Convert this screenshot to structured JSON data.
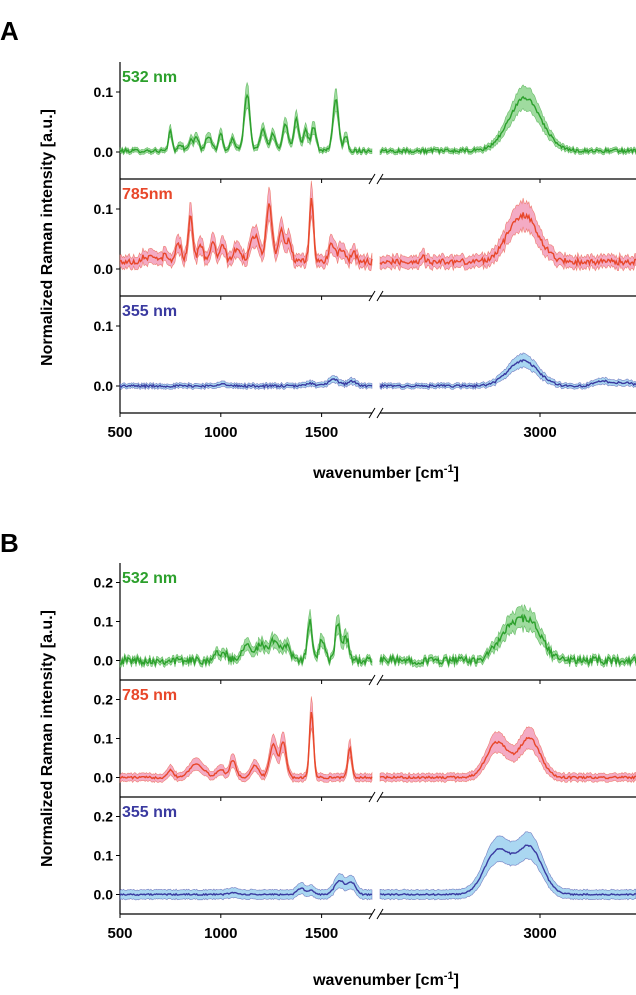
{
  "chart_data": [
    {
      "type": "line",
      "panel_label": "A",
      "ylabel": "Normalized Raman intensity [a.u.]",
      "xlabel": "wavenumber [cm⁻¹]",
      "x_ticks": [
        "500",
        "1000",
        "1500",
        "3000"
      ],
      "x_range_left": [
        500,
        1750
      ],
      "x_range_right": [
        2250,
        3450
      ],
      "break_marks": true,
      "band": "shaded ± standard deviation",
      "subplots": [
        {
          "label": "532 nm",
          "color": "#2ca02c",
          "fill": "#7fcf7f",
          "ylim": [
            -0.045,
            0.15
          ],
          "y_ticks": [
            "0.0",
            "0.1"
          ],
          "y_tick_values": [
            0.0,
            0.1
          ],
          "baseline": 0.002,
          "noise": 0.003,
          "band_width": 0.004,
          "peaks": [
            [
              750,
              0.035,
              8
            ],
            [
              800,
              0.012,
              10
            ],
            [
              850,
              0.018,
              10
            ],
            [
              880,
              0.022,
              12
            ],
            [
              940,
              0.025,
              15
            ],
            [
              1000,
              0.03,
              10
            ],
            [
              1060,
              0.02,
              12
            ],
            [
              1130,
              0.095,
              14
            ],
            [
              1210,
              0.035,
              15
            ],
            [
              1260,
              0.028,
              12
            ],
            [
              1320,
              0.045,
              14
            ],
            [
              1375,
              0.055,
              12
            ],
            [
              1420,
              0.035,
              12
            ],
            [
              1460,
              0.04,
              12
            ],
            [
              1570,
              0.085,
              14
            ],
            [
              1620,
              0.025,
              10
            ],
            [
              2930,
              0.088,
              75
            ]
          ]
        },
        {
          "label": "785nm",
          "color": "#e8472a",
          "fill": "#f08fb0",
          "ylim": [
            -0.045,
            0.15
          ],
          "y_ticks": [
            "0.0",
            "0.1"
          ],
          "y_tick_values": [
            0.0,
            0.1
          ],
          "baseline": 0.012,
          "noise": 0.005,
          "band_width": 0.01,
          "peaks": [
            [
              620,
              0.01,
              15
            ],
            [
              660,
              0.012,
              12
            ],
            [
              720,
              0.01,
              15
            ],
            [
              790,
              0.03,
              15
            ],
            [
              850,
              0.075,
              12
            ],
            [
              900,
              0.03,
              12
            ],
            [
              960,
              0.035,
              12
            ],
            [
              1010,
              0.03,
              12
            ],
            [
              1080,
              0.02,
              20
            ],
            [
              1170,
              0.045,
              22
            ],
            [
              1240,
              0.098,
              14
            ],
            [
              1300,
              0.055,
              15
            ],
            [
              1340,
              0.035,
              12
            ],
            [
              1450,
              0.105,
              10
            ],
            [
              1550,
              0.03,
              15
            ],
            [
              1600,
              0.02,
              15
            ],
            [
              1660,
              0.015,
              12
            ],
            [
              2450,
              0.01,
              10
            ],
            [
              2920,
              0.078,
              70
            ]
          ]
        },
        {
          "label": "355 nm",
          "color": "#3a3aa0",
          "fill": "#8ec9ec",
          "ylim": [
            -0.045,
            0.15
          ],
          "y_ticks": [
            "0.0",
            "0.1"
          ],
          "y_tick_values": [
            0.0,
            0.1
          ],
          "baseline": 0.0,
          "noise": 0.002,
          "band_width": 0.004,
          "peaks": [
            [
              1000,
              0.004,
              20
            ],
            [
              1440,
              0.005,
              20
            ],
            [
              1560,
              0.01,
              30
            ],
            [
              1650,
              0.008,
              20
            ],
            [
              2920,
              0.042,
              70
            ],
            [
              3300,
              0.008,
              40
            ],
            [
              3400,
              0.006,
              30
            ]
          ]
        }
      ]
    },
    {
      "type": "line",
      "panel_label": "B",
      "ylabel": "Normalized Raman intensity [a.u.]",
      "xlabel": "wavenumber [cm⁻¹]",
      "x_ticks": [
        "500",
        "1000",
        "1500",
        "3000"
      ],
      "x_range_left": [
        500,
        1750
      ],
      "x_range_right": [
        2250,
        3450
      ],
      "break_marks": true,
      "band": "shaded ± standard deviation",
      "subplots": [
        {
          "label": "532 nm",
          "color": "#2ca02c",
          "fill": "#7fcf7f",
          "ylim": [
            -0.05,
            0.25
          ],
          "y_ticks": [
            "0.0",
            "0.1",
            "0.2"
          ],
          "y_tick_values": [
            0.0,
            0.1,
            0.2
          ],
          "baseline": 0.0,
          "noise": 0.01,
          "band_width": 0.008,
          "peaks": [
            [
              1000,
              0.02,
              30
            ],
            [
              1130,
              0.045,
              25
            ],
            [
              1200,
              0.04,
              20
            ],
            [
              1270,
              0.055,
              25
            ],
            [
              1330,
              0.04,
              15
            ],
            [
              1440,
              0.1,
              12
            ],
            [
              1500,
              0.05,
              15
            ],
            [
              1580,
              0.095,
              12
            ],
            [
              1620,
              0.06,
              15
            ],
            [
              2860,
              0.075,
              60
            ],
            [
              2960,
              0.08,
              55
            ]
          ]
        },
        {
          "label": "785 nm",
          "color": "#e8472a",
          "fill": "#f08fb0",
          "ylim": [
            -0.05,
            0.25
          ],
          "y_ticks": [
            "0.0",
            "0.1",
            "0.2"
          ],
          "y_tick_values": [
            0.0,
            0.1,
            0.2
          ],
          "baseline": 0.0,
          "noise": 0.003,
          "band_width": 0.01,
          "peaks": [
            [
              750,
              0.02,
              15
            ],
            [
              880,
              0.035,
              35
            ],
            [
              1000,
              0.02,
              20
            ],
            [
              1060,
              0.045,
              15
            ],
            [
              1170,
              0.03,
              20
            ],
            [
              1260,
              0.085,
              18
            ],
            [
              1310,
              0.09,
              15
            ],
            [
              1450,
              0.17,
              10
            ],
            [
              1640,
              0.075,
              10
            ],
            [
              2800,
              0.09,
              50
            ],
            [
              2950,
              0.1,
              50
            ]
          ]
        },
        {
          "label": "355 nm",
          "color": "#3a3aa0",
          "fill": "#8ec9ec",
          "ylim": [
            -0.05,
            0.25
          ],
          "y_ticks": [
            "0.0",
            "0.1",
            "0.2"
          ],
          "y_tick_values": [
            0.0,
            0.1,
            0.2
          ],
          "baseline": 0.0,
          "noise": 0.002,
          "band_width": 0.012,
          "peaks": [
            [
              1060,
              0.005,
              20
            ],
            [
              1400,
              0.015,
              20
            ],
            [
              1450,
              0.01,
              15
            ],
            [
              1590,
              0.035,
              25
            ],
            [
              1650,
              0.03,
              20
            ],
            [
              2800,
              0.11,
              60
            ],
            [
              2950,
              0.12,
              60
            ]
          ]
        }
      ]
    }
  ]
}
